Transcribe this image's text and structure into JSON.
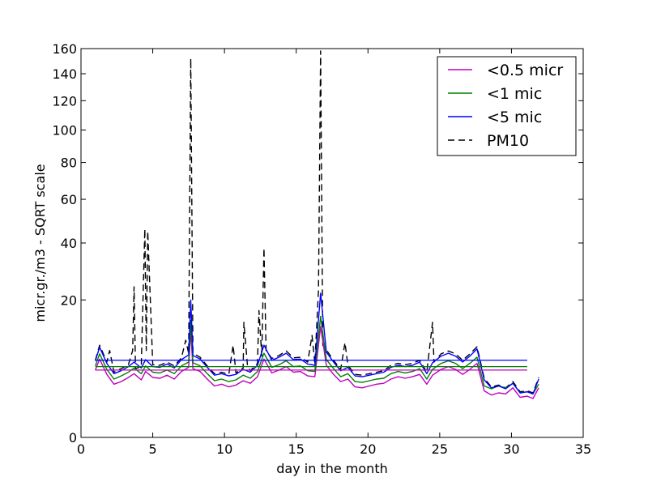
{
  "chart_data": {
    "type": "line",
    "title": "",
    "xlabel": "day in the month",
    "ylabel": "micr.gr./m3 - SQRT scale",
    "y_scale": "sqrt",
    "xlim": [
      0,
      35
    ],
    "ylim": [
      0,
      160
    ],
    "x_ticks": [
      0,
      5,
      10,
      15,
      20,
      25,
      30,
      35
    ],
    "y_ticks": [
      0,
      20,
      40,
      60,
      80,
      100,
      120,
      140,
      160
    ],
    "grid": false,
    "legend_position": "top-right",
    "colors": {
      "fine": "#bf00bf",
      "medium": "#008000",
      "coarse": "#0000ff",
      "pm10": "#000000"
    },
    "series": [
      {
        "name": "<0.5 micr",
        "color": "#bf00bf",
        "style": "solid",
        "x": [
          1.0,
          1.3,
          1.8,
          2.3,
          2.8,
          3.3,
          3.7,
          4.2,
          4.5,
          5.0,
          5.5,
          6.0,
          6.5,
          7.0,
          7.5,
          7.65,
          7.8,
          8.3,
          8.8,
          9.3,
          9.8,
          10.3,
          10.8,
          11.3,
          11.8,
          12.3,
          12.75,
          13.3,
          13.8,
          14.3,
          14.8,
          15.3,
          15.8,
          16.3,
          16.7,
          17.1,
          17.6,
          18.1,
          18.6,
          19.1,
          19.6,
          20.1,
          20.6,
          21.1,
          21.6,
          22.1,
          22.6,
          23.1,
          23.6,
          24.1,
          24.5,
          25.1,
          25.6,
          26.1,
          26.6,
          27.1,
          27.6,
          28.1,
          28.6,
          29.1,
          29.6,
          30.1,
          30.6,
          31.1,
          31.5,
          31.9
        ],
        "y": [
          4.8,
          6.5,
          4.2,
          3.0,
          3.3,
          3.8,
          4.3,
          3.5,
          4.6,
          3.8,
          3.7,
          4.1,
          3.6,
          4.6,
          5.2,
          12.0,
          5.0,
          4.6,
          3.6,
          2.8,
          3.0,
          2.7,
          2.9,
          3.4,
          3.1,
          3.9,
          6.5,
          4.4,
          4.8,
          5.3,
          4.5,
          4.6,
          4.0,
          3.9,
          13.0,
          5.5,
          4.2,
          3.3,
          3.6,
          2.7,
          2.6,
          2.8,
          3.0,
          3.1,
          3.6,
          3.9,
          3.7,
          3.9,
          4.2,
          3.0,
          4.1,
          4.9,
          5.3,
          4.9,
          4.2,
          4.9,
          5.8,
          2.3,
          1.9,
          2.1,
          2.0,
          2.6,
          1.7,
          1.8,
          1.6,
          2.6
        ]
      },
      {
        "name": "<1 mic",
        "color": "#008000",
        "style": "solid",
        "x": [
          1.0,
          1.3,
          1.8,
          2.3,
          2.8,
          3.3,
          3.7,
          4.2,
          4.5,
          5.0,
          5.5,
          6.0,
          6.5,
          7.0,
          7.5,
          7.65,
          7.8,
          8.3,
          8.8,
          9.3,
          9.8,
          10.3,
          10.8,
          11.3,
          11.8,
          12.3,
          12.75,
          13.3,
          13.8,
          14.3,
          14.8,
          15.3,
          15.8,
          16.3,
          16.7,
          17.1,
          17.6,
          18.1,
          18.6,
          19.1,
          19.6,
          20.1,
          20.6,
          21.1,
          21.6,
          22.1,
          22.6,
          23.1,
          23.6,
          24.1,
          24.5,
          25.1,
          25.6,
          26.1,
          26.6,
          27.1,
          27.6,
          28.1,
          28.6,
          29.1,
          29.6,
          30.1,
          30.6,
          31.1,
          31.5,
          31.9
        ],
        "y": [
          5.4,
          7.4,
          4.9,
          3.6,
          4.0,
          4.5,
          5.1,
          4.3,
          5.4,
          4.5,
          4.4,
          4.8,
          4.3,
          5.4,
          6.0,
          14.5,
          5.9,
          5.4,
          4.3,
          3.4,
          3.6,
          3.3,
          3.5,
          4.1,
          3.7,
          4.6,
          7.5,
          5.2,
          5.6,
          6.2,
          5.3,
          5.4,
          4.7,
          4.6,
          15.5,
          6.4,
          5.0,
          3.9,
          4.3,
          3.3,
          3.2,
          3.4,
          3.6,
          3.7,
          4.3,
          4.6,
          4.4,
          4.6,
          5.0,
          3.6,
          4.9,
          5.8,
          6.2,
          5.8,
          5.0,
          5.8,
          6.8,
          2.8,
          2.5,
          2.8,
          2.6,
          3.1,
          2.1,
          2.2,
          2.0,
          3.0
        ]
      },
      {
        "name": "<5 mic",
        "color": "#0000ff",
        "style": "solid",
        "x": [
          1.0,
          1.3,
          1.8,
          2.3,
          2.8,
          3.3,
          3.7,
          4.2,
          4.5,
          5.0,
          5.5,
          6.0,
          6.5,
          7.0,
          7.5,
          7.65,
          7.8,
          8.3,
          8.8,
          9.3,
          9.8,
          10.3,
          10.8,
          11.3,
          11.8,
          12.3,
          12.75,
          13.3,
          13.8,
          14.3,
          14.8,
          15.3,
          15.8,
          16.3,
          16.7,
          17.1,
          17.6,
          18.1,
          18.6,
          19.1,
          19.6,
          20.1,
          20.6,
          21.1,
          21.6,
          22.1,
          22.6,
          23.1,
          23.6,
          24.1,
          24.5,
          25.1,
          25.6,
          26.1,
          26.6,
          27.1,
          27.6,
          28.1,
          28.6,
          29.1,
          29.6,
          30.1,
          30.6,
          31.1,
          31.5,
          31.9
        ],
        "y": [
          6.2,
          8.6,
          5.8,
          4.3,
          4.7,
          5.3,
          6.0,
          5.1,
          6.4,
          5.3,
          5.2,
          5.7,
          5.1,
          6.4,
          7.2,
          20.0,
          7.1,
          6.5,
          5.2,
          4.1,
          4.3,
          4.0,
          4.2,
          4.9,
          4.5,
          5.5,
          9.0,
          6.3,
          6.8,
          7.5,
          6.4,
          6.5,
          5.7,
          5.5,
          22.0,
          7.7,
          6.0,
          4.7,
          5.2,
          4.0,
          3.9,
          4.1,
          4.3,
          4.5,
          5.2,
          5.5,
          5.3,
          5.5,
          6.0,
          4.3,
          5.9,
          7.0,
          7.5,
          7.0,
          6.0,
          7.0,
          8.3,
          3.5,
          2.6,
          2.8,
          2.5,
          3.1,
          2.1,
          2.2,
          2.0,
          3.6
        ]
      },
      {
        "name": "PM10",
        "color": "#000000",
        "style": "dashed",
        "x": [
          1.0,
          1.3,
          1.8,
          2.0,
          2.3,
          2.8,
          3.3,
          3.6,
          3.7,
          3.8,
          4.2,
          4.45,
          4.55,
          4.65,
          5.0,
          5.5,
          6.0,
          6.5,
          7.0,
          7.3,
          7.5,
          7.65,
          7.8,
          8.3,
          8.8,
          9.3,
          9.8,
          10.3,
          10.6,
          10.8,
          11.3,
          11.35,
          11.6,
          11.8,
          12.3,
          12.4,
          12.6,
          12.75,
          12.9,
          13.3,
          13.8,
          14.3,
          14.8,
          15.3,
          15.8,
          16.1,
          16.3,
          16.55,
          16.7,
          16.85,
          17.1,
          17.6,
          18.1,
          18.4,
          18.6,
          19.1,
          19.6,
          20.1,
          20.6,
          21.1,
          21.6,
          22.1,
          22.6,
          23.1,
          23.6,
          24.1,
          24.5,
          24.6,
          25.1,
          25.6,
          26.1,
          26.6,
          27.1,
          27.6,
          28.1,
          28.6,
          29.1,
          29.6,
          30.1,
          30.6,
          31.1,
          31.5,
          31.9
        ],
        "y": [
          6.3,
          9.0,
          6.0,
          8.0,
          4.5,
          5.0,
          5.6,
          8.0,
          24.0,
          5.0,
          5.3,
          46.0,
          8.0,
          45.0,
          5.6,
          5.5,
          6.0,
          5.4,
          6.7,
          10.0,
          7.5,
          152.0,
          7.5,
          6.8,
          5.4,
          4.3,
          4.5,
          4.2,
          9.0,
          4.4,
          5.1,
          14.0,
          5.5,
          4.7,
          5.8,
          17.0,
          7.0,
          38.0,
          8.0,
          6.6,
          7.1,
          7.9,
          6.7,
          6.8,
          6.0,
          11.0,
          5.8,
          23.0,
          158.0,
          9.0,
          8.1,
          6.3,
          4.9,
          9.5,
          5.5,
          4.2,
          4.1,
          4.3,
          4.5,
          4.7,
          5.5,
          5.8,
          5.6,
          5.8,
          6.3,
          4.5,
          14.0,
          6.0,
          7.4,
          7.9,
          7.4,
          6.3,
          7.4,
          8.7,
          3.7,
          2.7,
          2.9,
          2.6,
          3.3,
          2.2,
          2.3,
          2.1,
          3.8
        ]
      }
    ],
    "reference_lines": [
      {
        "series": "<0.5 micr",
        "y": 4.8,
        "x_from": 1.0,
        "x_to": 31.1
      },
      {
        "series": "<1 mic",
        "y": 5.3,
        "x_from": 1.0,
        "x_to": 31.1
      },
      {
        "series": "<5 mic",
        "y": 6.3,
        "x_from": 1.0,
        "x_to": 31.1
      }
    ]
  }
}
